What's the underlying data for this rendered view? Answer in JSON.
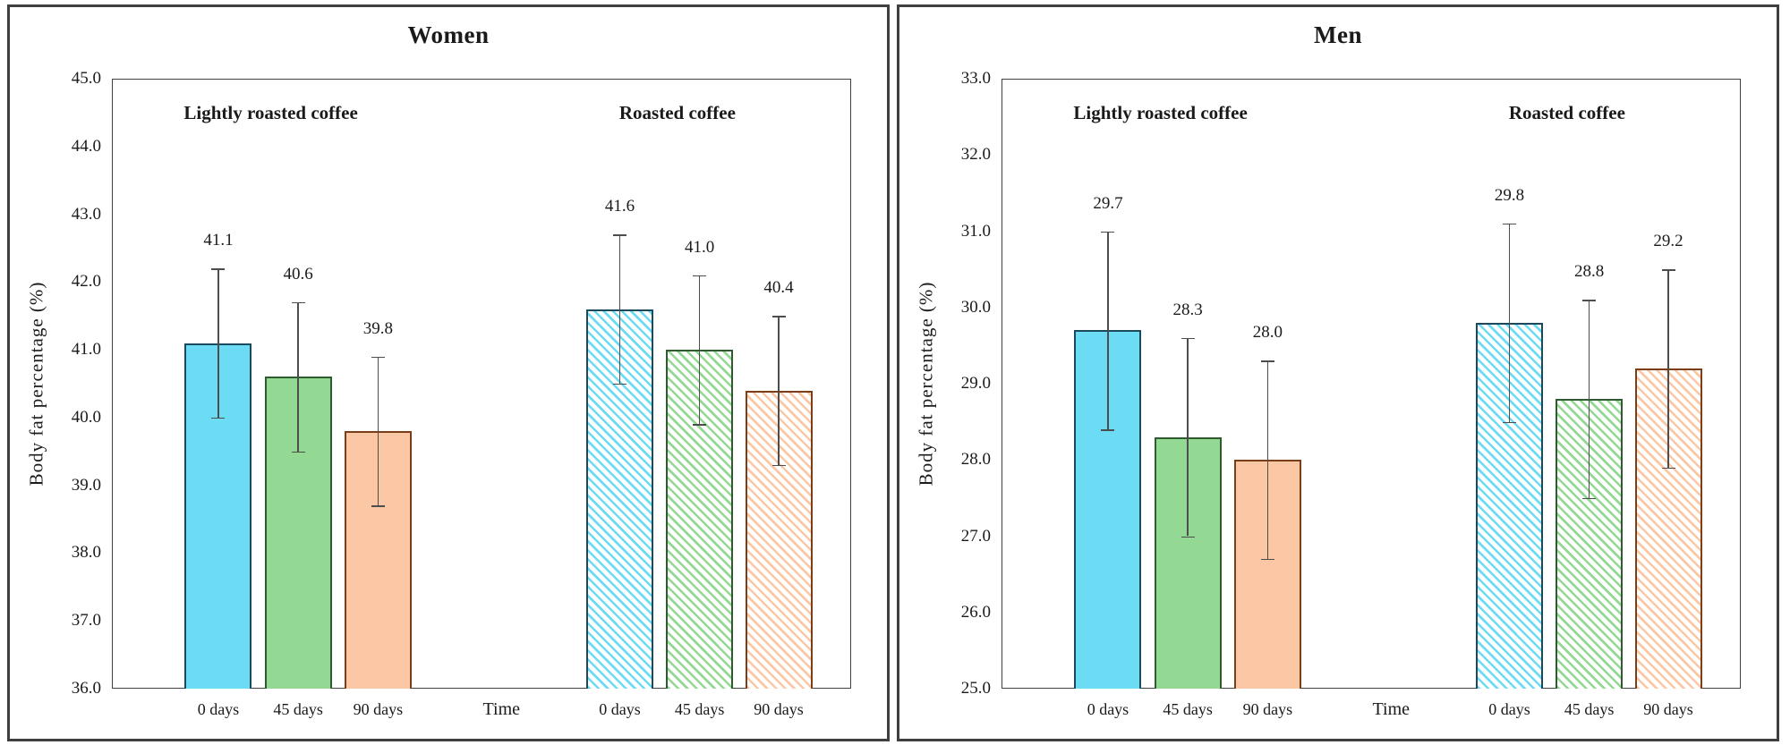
{
  "figure": {
    "background": "#ffffff",
    "panel_border_color": "#3f3f3f",
    "plot_border_color": "#404040",
    "text_color": "#1a1a1a",
    "error_bar_color": "#4d4d4d",
    "bar_fill_colors": [
      "#6CDBF4",
      "#93D893",
      "#FBC7A5"
    ],
    "bar_border_colors": [
      "#1b4a5e",
      "#2E5C2E",
      "#7C3E16"
    ],
    "hatch_direction": "diagonal-down-right",
    "value_label_decimals": 1
  },
  "chart_data": [
    {
      "type": "bar",
      "title": "Women",
      "ylabel": "Body fat percentage (%)",
      "xlabel": "Time",
      "ylim": [
        36.0,
        45.0
      ],
      "yticks": [
        "45.0",
        "44.0",
        "43.0",
        "42.0",
        "41.0",
        "40.0",
        "39.0",
        "38.0",
        "37.0",
        "36.0"
      ],
      "grid": false,
      "legend": "none",
      "categories": [
        "0 days",
        "45 days",
        "90 days"
      ],
      "groups": [
        {
          "label": "Lightly roasted coffee",
          "style": "solid",
          "values": [
            41.1,
            40.6,
            39.8
          ],
          "errors": [
            1.1,
            1.1,
            1.1
          ]
        },
        {
          "label": "Roasted coffee",
          "style": "hatched",
          "values": [
            41.6,
            41.0,
            40.4
          ],
          "errors": [
            1.1,
            1.1,
            1.1
          ]
        }
      ]
    },
    {
      "type": "bar",
      "title": "Men",
      "ylabel": "Body fat percentage (%)",
      "xlabel": "Time",
      "ylim": [
        25.0,
        33.0
      ],
      "yticks": [
        "33.0",
        "32.0",
        "31.0",
        "30.0",
        "29.0",
        "28.0",
        "27.0",
        "26.0",
        "25.0"
      ],
      "grid": false,
      "legend": "none",
      "categories": [
        "0 days",
        "45 days",
        "90 days"
      ],
      "groups": [
        {
          "label": "Lightly roasted coffee",
          "style": "solid",
          "values": [
            29.7,
            28.3,
            28.0
          ],
          "errors": [
            1.3,
            1.3,
            1.3
          ]
        },
        {
          "label": "Roasted coffee",
          "style": "hatched",
          "values": [
            29.8,
            28.8,
            29.2
          ],
          "errors": [
            1.3,
            1.3,
            1.3
          ]
        }
      ]
    }
  ]
}
